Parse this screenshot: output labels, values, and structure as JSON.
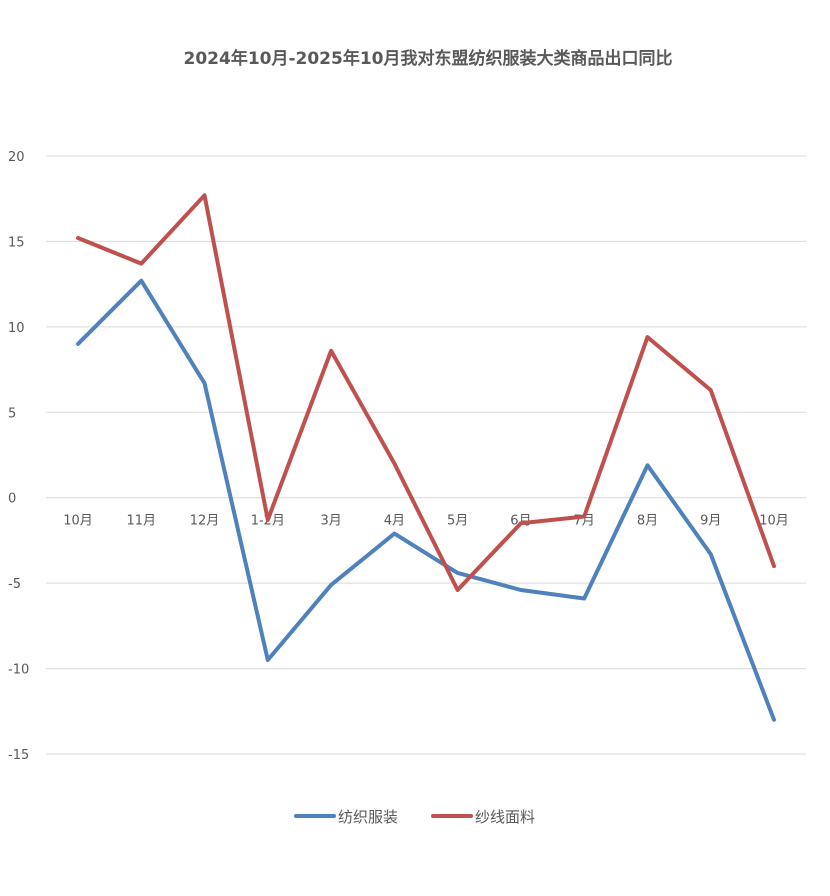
{
  "chart_data": {
    "type": "line",
    "title": "2024年10月-2025年10月我对东盟纺织服装大类商品出口同比",
    "categories": [
      "10月",
      "11月",
      "12月",
      "1-2月",
      "3月",
      "4月",
      "5月",
      "6月",
      "7月",
      "8月",
      "9月",
      "10月"
    ],
    "series": [
      {
        "name": "纺织服装",
        "color": "#4f81bd",
        "values": [
          9.0,
          12.7,
          6.7,
          -9.5,
          -5.1,
          -2.1,
          -4.4,
          -5.4,
          -5.9,
          1.9,
          -3.3,
          -13.0
        ]
      },
      {
        "name": "纱线面料",
        "color": "#c0504d",
        "values": [
          15.2,
          13.7,
          17.7,
          -1.3,
          8.6,
          2.0,
          -5.4,
          -1.5,
          -1.1,
          9.4,
          6.3,
          -4.0
        ]
      }
    ],
    "ylim": [
      -15,
      20
    ],
    "yticks": [
      "20",
      "15",
      "10",
      "5",
      "0",
      "-5",
      "-10",
      "-15"
    ],
    "xlabel": "",
    "ylabel": "",
    "grid": true,
    "legend": "bottom"
  }
}
